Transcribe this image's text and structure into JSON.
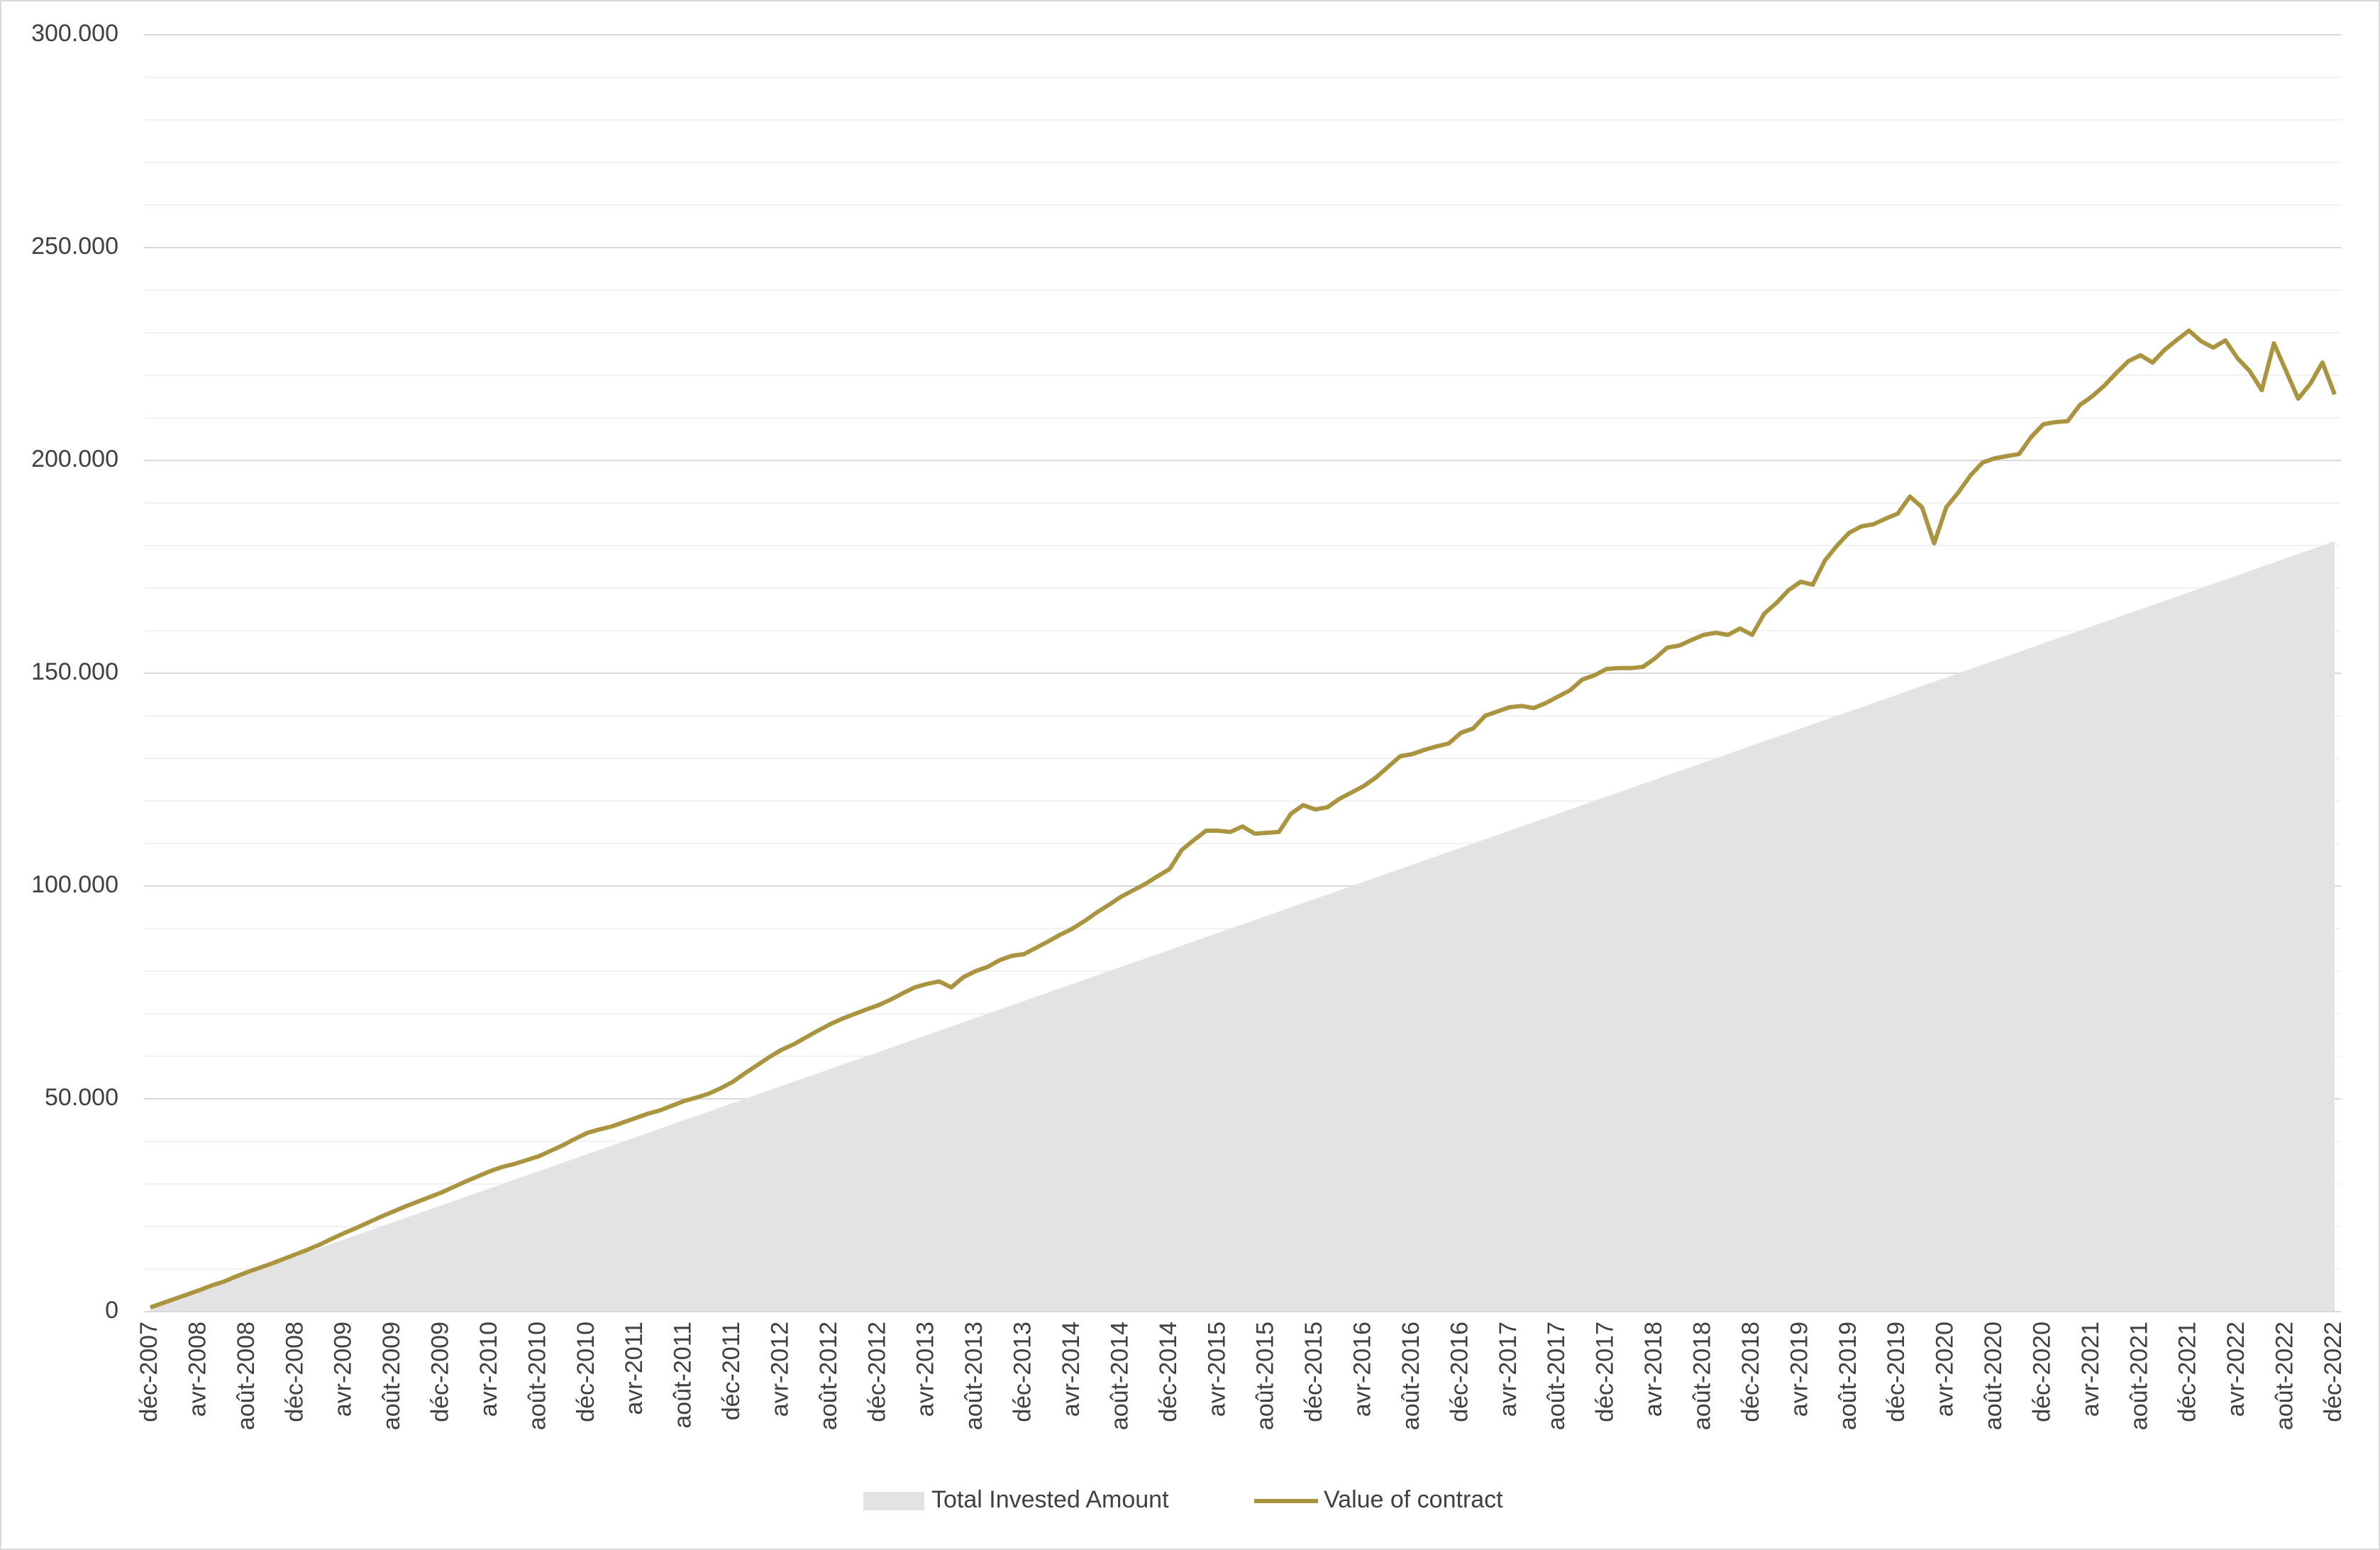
{
  "chart_data": {
    "type": "line-area",
    "categories": [
      "déc-2007",
      null,
      null,
      null,
      "avr-2008",
      null,
      null,
      null,
      "août-2008",
      null,
      null,
      null,
      "déc-2008",
      null,
      null,
      null,
      "avr-2009",
      null,
      null,
      null,
      "août-2009",
      null,
      null,
      null,
      "déc-2009",
      null,
      null,
      null,
      "avr-2010",
      null,
      null,
      null,
      "août-2010",
      null,
      null,
      null,
      "déc-2010",
      null,
      null,
      null,
      "avr-2011",
      null,
      null,
      null,
      "août-2011",
      null,
      null,
      null,
      "déc-2011",
      null,
      null,
      null,
      "avr-2012",
      null,
      null,
      null,
      "août-2012",
      null,
      null,
      null,
      "déc-2012",
      null,
      null,
      null,
      "avr-2013",
      null,
      null,
      null,
      "août-2013",
      null,
      null,
      null,
      "déc-2013",
      null,
      null,
      null,
      "avr-2014",
      null,
      null,
      null,
      "août-2014",
      null,
      null,
      null,
      "déc-2014",
      null,
      null,
      null,
      "avr-2015",
      null,
      null,
      null,
      "août-2015",
      null,
      null,
      null,
      "déc-2015",
      null,
      null,
      null,
      "avr-2016",
      null,
      null,
      null,
      "août-2016",
      null,
      null,
      null,
      "déc-2016",
      null,
      null,
      null,
      "avr-2017",
      null,
      null,
      null,
      "août-2017",
      null,
      null,
      null,
      "déc-2017",
      null,
      null,
      null,
      "avr-2018",
      null,
      null,
      null,
      "août-2018",
      null,
      null,
      null,
      "déc-2018",
      null,
      null,
      null,
      "avr-2019",
      null,
      null,
      null,
      "août-2019",
      null,
      null,
      null,
      "déc-2019",
      null,
      null,
      null,
      "avr-2020",
      null,
      null,
      null,
      "août-2020",
      null,
      null,
      null,
      "déc-2020",
      null,
      null,
      null,
      "avr-2021",
      null,
      null,
      null,
      "août-2021",
      null,
      null,
      null,
      "déc-2021",
      null,
      null,
      null,
      "avr-2022",
      null,
      null,
      null,
      "août-2022",
      null,
      null,
      null,
      "déc-2022"
    ],
    "series": [
      {
        "name": "Total Invested Amount",
        "kind": "area",
        "color": "#e3e3e3",
        "values": [
          1000,
          2000,
          3000,
          4000,
          5000,
          6000,
          7000,
          8000,
          9000,
          10000,
          11000,
          12000,
          13000,
          14000,
          15000,
          16000,
          17000,
          18000,
          19000,
          20000,
          21000,
          22000,
          23000,
          24000,
          25000,
          26000,
          27000,
          28000,
          29000,
          30000,
          31000,
          32000,
          33000,
          34000,
          35000,
          36000,
          37000,
          38000,
          39000,
          40000,
          41000,
          42000,
          43000,
          44000,
          45000,
          46000,
          47000,
          48000,
          49000,
          50000,
          51000,
          52000,
          53000,
          54000,
          55000,
          56000,
          57000,
          58000,
          59000,
          60000,
          61000,
          62000,
          63000,
          64000,
          65000,
          66000,
          67000,
          68000,
          69000,
          70000,
          71000,
          72000,
          73000,
          74000,
          75000,
          76000,
          77000,
          78000,
          79000,
          80000,
          81000,
          82000,
          83000,
          84000,
          85000,
          86000,
          87000,
          88000,
          89000,
          90000,
          91000,
          92000,
          93000,
          94000,
          95000,
          96000,
          97000,
          98000,
          99000,
          100000,
          101000,
          102000,
          103000,
          104000,
          105000,
          106000,
          107000,
          108000,
          109000,
          110000,
          111000,
          112000,
          113000,
          114000,
          115000,
          116000,
          117000,
          118000,
          119000,
          120000,
          121000,
          122000,
          123000,
          124000,
          125000,
          126000,
          127000,
          128000,
          129000,
          130000,
          131000,
          132000,
          133000,
          134000,
          135000,
          136000,
          137000,
          138000,
          139000,
          140000,
          141000,
          142000,
          143000,
          144000,
          145000,
          146000,
          147000,
          148000,
          149000,
          150000,
          151000,
          152000,
          153000,
          154000,
          155000,
          156000,
          157000,
          158000,
          159000,
          160000,
          161000,
          162000,
          163000,
          164000,
          165000,
          166000,
          167000,
          168000,
          169000,
          170000,
          171000,
          172000,
          173000,
          174000,
          175000,
          176000,
          177000,
          178000,
          179000,
          180000,
          181000
        ]
      },
      {
        "name": "Value of contract",
        "kind": "line",
        "color": "#aa9440",
        "values": [
          1000,
          2000,
          3000,
          4000,
          5000,
          6100,
          7000,
          8200,
          9300,
          10300,
          11300,
          12400,
          13500,
          14600,
          15800,
          17200,
          18500,
          19700,
          21000,
          22300,
          23500,
          24700,
          25800,
          26900,
          28000,
          29300,
          30600,
          31800,
          33000,
          34000,
          34700,
          35600,
          36500,
          37800,
          39100,
          40600,
          42000,
          42800,
          43500,
          44500,
          45500,
          46500,
          47300,
          48400,
          49500,
          50300,
          51200,
          52500,
          54000,
          56000,
          57900,
          59800,
          61500,
          62800,
          64400,
          66000,
          67500,
          68800,
          69900,
          71000,
          72000,
          73300,
          74800,
          76200,
          77000,
          77600,
          76200,
          78600,
          80000,
          81000,
          82600,
          83600,
          84000,
          85500,
          87000,
          88600,
          90000,
          91800,
          93800,
          95600,
          97500,
          99000,
          100500,
          102300,
          104000,
          108500,
          110800,
          113000,
          113000,
          112700,
          114000,
          112300,
          112500,
          112700,
          117000,
          119000,
          118000,
          118500,
          120500,
          122000,
          123500,
          125500,
          128000,
          130500,
          131000,
          132000,
          132800,
          133500,
          136000,
          137000,
          140000,
          141000,
          142000,
          142300,
          141800,
          143000,
          144500,
          146000,
          148500,
          149500,
          151000,
          151200,
          151200,
          151500,
          153500,
          156000,
          156500,
          157800,
          159000,
          159500,
          159000,
          160500,
          159000,
          164000,
          166500,
          169500,
          171500,
          170800,
          176500,
          180000,
          183000,
          184500,
          185000,
          186300,
          187500,
          191500,
          189000,
          180500,
          189000,
          192500,
          196500,
          199500,
          200500,
          201000,
          201500,
          205500,
          208500,
          209000,
          209200,
          213000,
          215000,
          217500,
          220500,
          223300,
          224700,
          223000,
          226000,
          228300,
          230500,
          228000,
          226500,
          228200,
          224000,
          221000,
          216500,
          227500,
          221000,
          214500,
          218000,
          223000,
          215500
        ]
      }
    ],
    "ylim": [
      0,
      300000
    ],
    "yticks": [
      {
        "value": 0,
        "label": "0"
      },
      {
        "value": 50000,
        "label": "50.000"
      },
      {
        "value": 100000,
        "label": "100.000"
      },
      {
        "value": 150000,
        "label": "150.000"
      },
      {
        "value": 200000,
        "label": "200.000"
      },
      {
        "value": 250000,
        "label": "250.000"
      },
      {
        "value": 300000,
        "label": "300.000"
      }
    ],
    "minor_yticks": [
      10000,
      20000,
      30000,
      40000,
      60000,
      70000,
      80000,
      90000,
      110000,
      120000,
      130000,
      140000,
      160000,
      170000,
      180000,
      190000,
      210000,
      220000,
      230000,
      240000,
      260000,
      270000,
      280000,
      290000
    ],
    "grid": true,
    "legend": "bottom"
  }
}
